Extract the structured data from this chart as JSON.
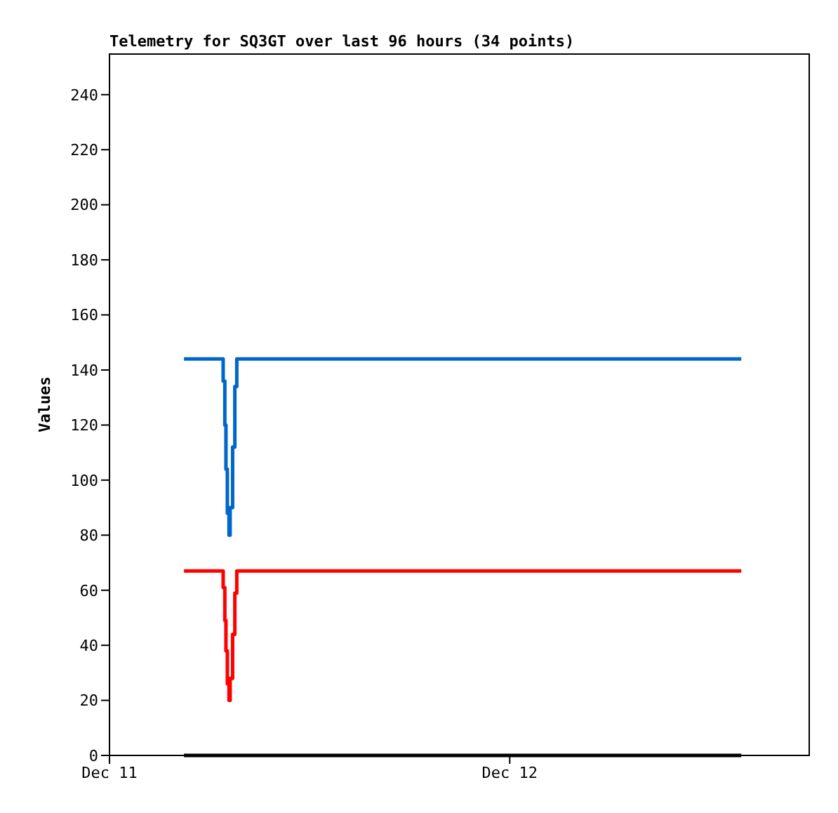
{
  "chart_data": {
    "type": "step",
    "title": "Telemetry for SQ3GT over last 96 hours (34 points)",
    "ylabel": "Values",
    "x": [
      "--12-11T04:28",
      "--12-11T06:49",
      "--12-11T06:55",
      "--12-11T06:59",
      "--12-11T07:04",
      "--12-11T07:10",
      "--12-11T07:14",
      "--12-11T07:23",
      "--12-11T07:31",
      "--12-11T07:38",
      "--12-12T13:53"
    ],
    "series": [
      {
        "color": "#0066cc",
        "values": [
          144,
          136,
          120,
          104,
          88,
          80,
          90,
          112,
          134,
          144,
          144
        ]
      },
      {
        "color": "#ff0000",
        "values": [
          67,
          61,
          49,
          38,
          26,
          20,
          28,
          44,
          59,
          67,
          67
        ]
      },
      {
        "color": "#000000",
        "values": [
          0,
          0,
          0,
          0,
          0,
          0,
          0,
          0,
          0,
          0,
          0
        ]
      }
    ],
    "xlim": [
      "--12-11T00:00",
      "--12-12T18:00"
    ],
    "xticks": [
      {
        "value": "--12-11",
        "label": "Dec 11"
      },
      {
        "value": "--12-12",
        "label": "Dec 12"
      }
    ],
    "ylim": [
      0,
      255
    ],
    "yticks": [
      0,
      20,
      40,
      60,
      80,
      100,
      120,
      140,
      160,
      180,
      200,
      220,
      240
    ],
    "grid": false,
    "marker": "none",
    "line_style": "solid"
  }
}
